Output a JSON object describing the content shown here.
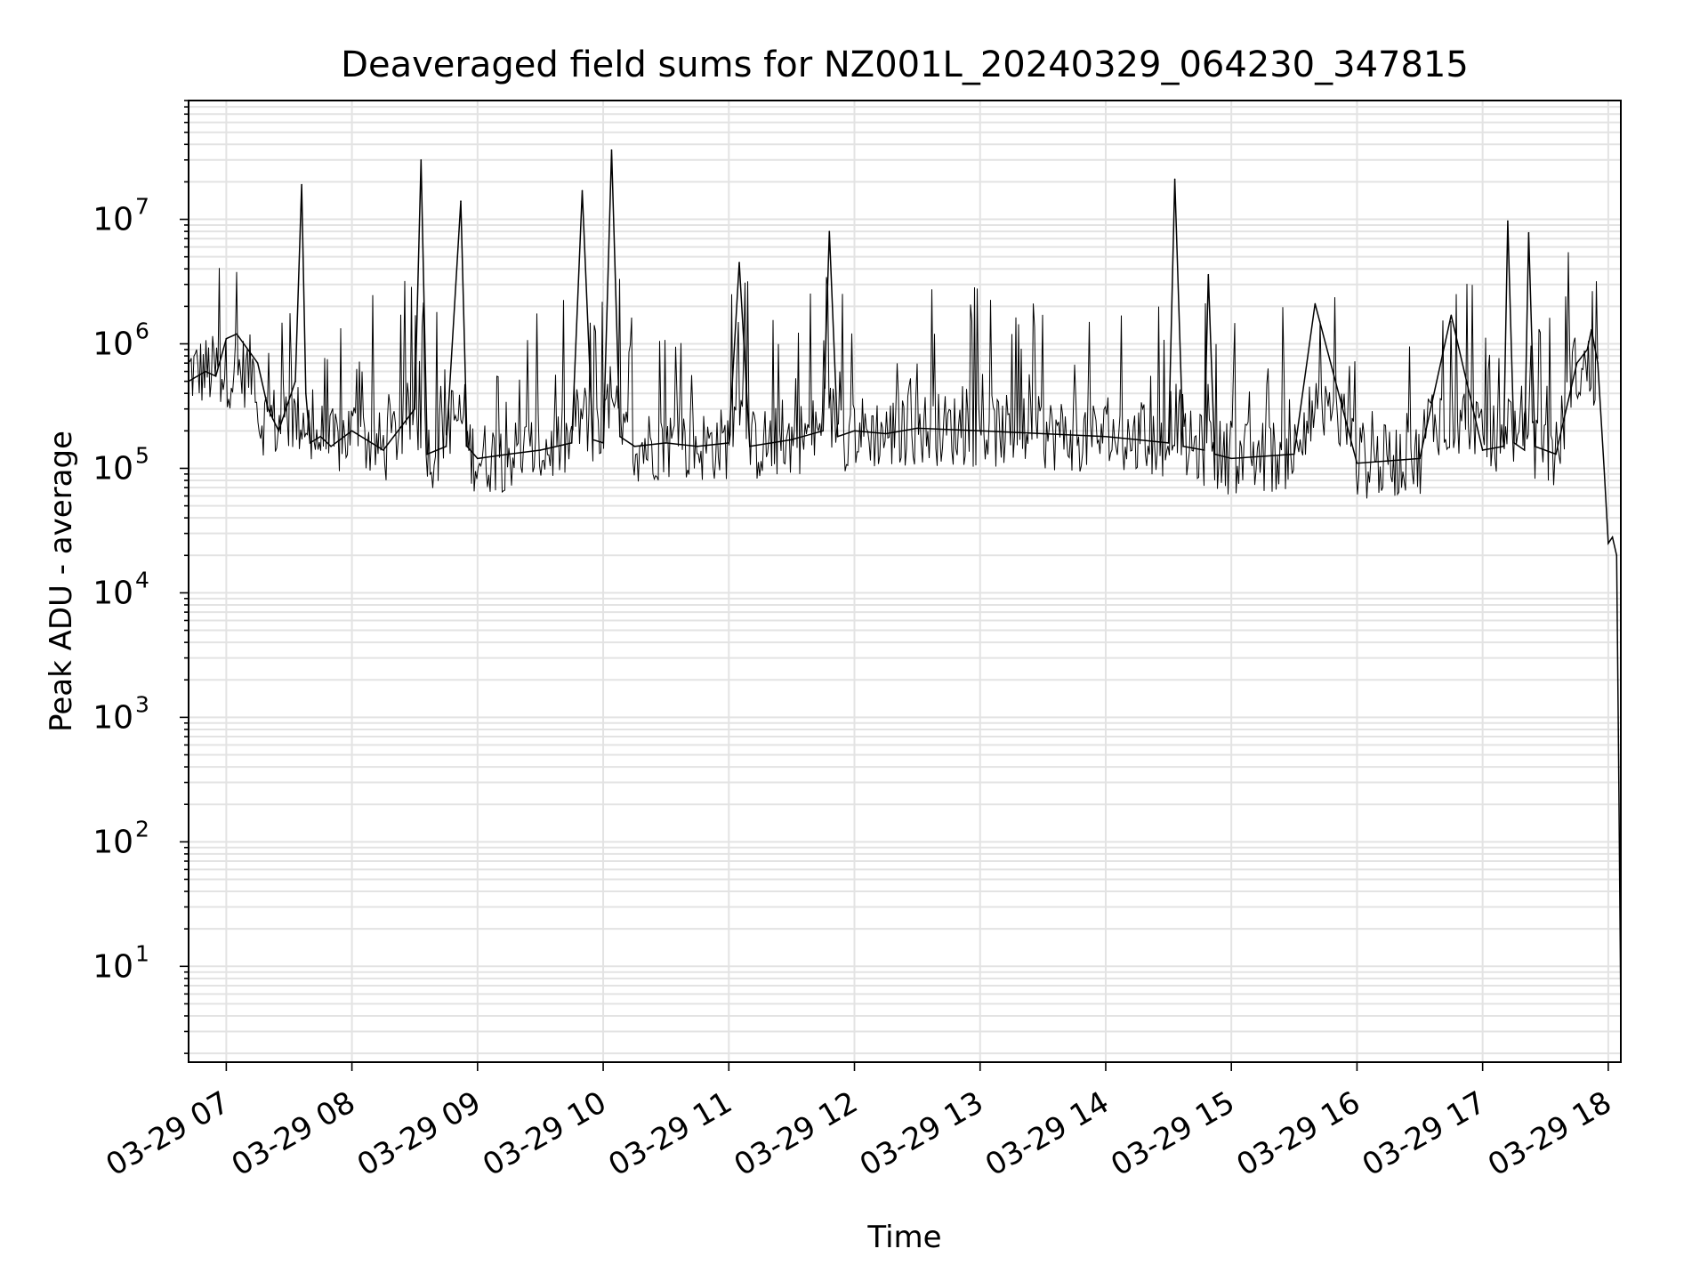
{
  "chart_data": {
    "type": "line",
    "title": "Deaveraged field sums for NZ001L_20240329_064230_347815",
    "xlabel": "Time",
    "ylabel": "Peak ADU - average",
    "yscale": "log",
    "grid": true,
    "series_color": "#000000",
    "grid_color": "#e3e3e3",
    "xlim": [
      "2024-03-29 06:42",
      "2024-03-29 18:06"
    ],
    "ylim": [
      1.7,
      90000000
    ],
    "x_ticks": [
      "03-29 07",
      "03-29 08",
      "03-29 09",
      "03-29 10",
      "03-29 11",
      "03-29 12",
      "03-29 13",
      "03-29 14",
      "03-29 15",
      "03-29 16",
      "03-29 17",
      "03-29 18"
    ],
    "y_ticks": [
      {
        "label": "10",
        "exp": "1"
      },
      {
        "label": "10",
        "exp": "2"
      },
      {
        "label": "10",
        "exp": "3"
      },
      {
        "label": "10",
        "exp": "4"
      },
      {
        "label": "10",
        "exp": "5"
      },
      {
        "label": "10",
        "exp": "6"
      },
      {
        "label": "10",
        "exp": "7"
      }
    ],
    "series": [
      {
        "x": [
          "2024-03-29 06:42",
          "2024-03-29 06:50",
          "2024-03-29 06:55",
          "2024-03-29 07:00",
          "2024-03-29 07:05",
          "2024-03-29 07:15",
          "2024-03-29 07:20",
          "2024-03-29 07:25",
          "2024-03-29 07:33",
          "2024-03-29 07:36",
          "2024-03-29 07:38",
          "2024-03-29 07:40",
          "2024-03-29 07:45",
          "2024-03-29 07:50",
          "2024-03-29 08:00",
          "2024-03-29 08:15",
          "2024-03-29 08:30",
          "2024-03-29 08:33",
          "2024-03-29 08:36",
          "2024-03-29 08:45",
          "2024-03-29 08:52",
          "2024-03-29 08:55",
          "2024-03-29 09:00",
          "2024-03-29 09:15",
          "2024-03-29 09:30",
          "2024-03-29 09:45",
          "2024-03-29 09:50",
          "2024-03-29 09:55",
          "2024-03-29 10:00",
          "2024-03-29 10:04",
          "2024-03-29 10:08",
          "2024-03-29 10:15",
          "2024-03-29 10:30",
          "2024-03-29 10:45",
          "2024-03-29 11:00",
          "2024-03-29 11:05",
          "2024-03-29 11:10",
          "2024-03-29 11:30",
          "2024-03-29 11:45",
          "2024-03-29 11:48",
          "2024-03-29 11:52",
          "2024-03-29 12:00",
          "2024-03-29 12:15",
          "2024-03-29 12:30",
          "2024-03-29 13:00",
          "2024-03-29 13:30",
          "2024-03-29 14:00",
          "2024-03-29 14:15",
          "2024-03-29 14:30",
          "2024-03-29 14:33",
          "2024-03-29 14:37",
          "2024-03-29 14:47",
          "2024-03-29 14:49",
          "2024-03-29 14:52",
          "2024-03-29 15:00",
          "2024-03-29 15:30",
          "2024-03-29 15:40",
          "2024-03-29 16:00",
          "2024-03-29 16:30",
          "2024-03-29 16:45",
          "2024-03-29 17:00",
          "2024-03-29 17:10",
          "2024-03-29 17:12",
          "2024-03-29 17:15",
          "2024-03-29 17:20",
          "2024-03-29 17:22",
          "2024-03-29 17:25",
          "2024-03-29 17:35",
          "2024-03-29 17:45",
          "2024-03-29 17:50",
          "2024-03-29 17:52",
          "2024-03-29 17:55",
          "2024-03-29 17:58",
          "2024-03-29 18:00",
          "2024-03-29 18:02",
          "2024-03-29 18:04",
          "2024-03-29 18:05",
          "2024-03-29 18:06"
        ],
        "y": [
          500000,
          600000,
          550000,
          1100000,
          1200000,
          700000,
          300000,
          200000,
          500000,
          19000000,
          400000,
          160000,
          180000,
          150000,
          200000,
          140000,
          300000,
          30000000,
          130000,
          150000,
          14000000,
          150000,
          120000,
          130000,
          140000,
          160000,
          17000000,
          170000,
          160000,
          36000000,
          180000,
          150000,
          160000,
          150000,
          160000,
          4500000,
          150000,
          170000,
          200000,
          8000000,
          180000,
          200000,
          190000,
          210000,
          200000,
          190000,
          180000,
          170000,
          160000,
          21000000,
          150000,
          140000,
          3600000,
          130000,
          120000,
          130000,
          2100000,
          110000,
          120000,
          1700000,
          140000,
          150000,
          9700000,
          160000,
          140000,
          7800000,
          150000,
          130000,
          700000,
          900000,
          1300000,
          700000,
          100000,
          25000,
          28000,
          20000,
          400,
          4
        ]
      }
    ]
  }
}
